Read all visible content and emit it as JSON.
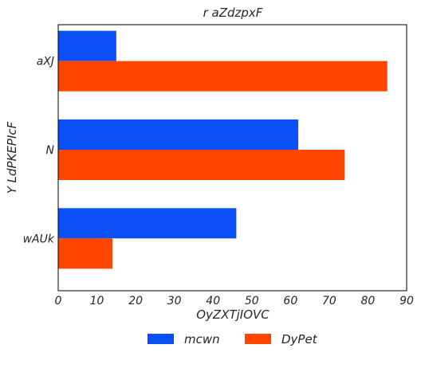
{
  "chart_data": {
    "type": "bar",
    "orientation": "horizontal",
    "title": "r aZdzpxF",
    "xlabel": "OyZXTjIOVC",
    "ylabel": "Y LdPKEPIcF",
    "categories": [
      "aXJ",
      "N",
      "wAUk"
    ],
    "series": [
      {
        "name": "mcwn",
        "values": [
          15,
          62,
          46
        ],
        "color": "#0b4ff7"
      },
      {
        "name": "DyPet",
        "values": [
          85,
          74,
          14
        ],
        "color": "#ff4500"
      }
    ],
    "xlim": [
      0,
      90
    ],
    "xticks": [
      "0",
      "10",
      "20",
      "30",
      "40",
      "50",
      "60",
      "70",
      "80",
      "90"
    ],
    "grid": false,
    "legend_position": "bottom"
  }
}
